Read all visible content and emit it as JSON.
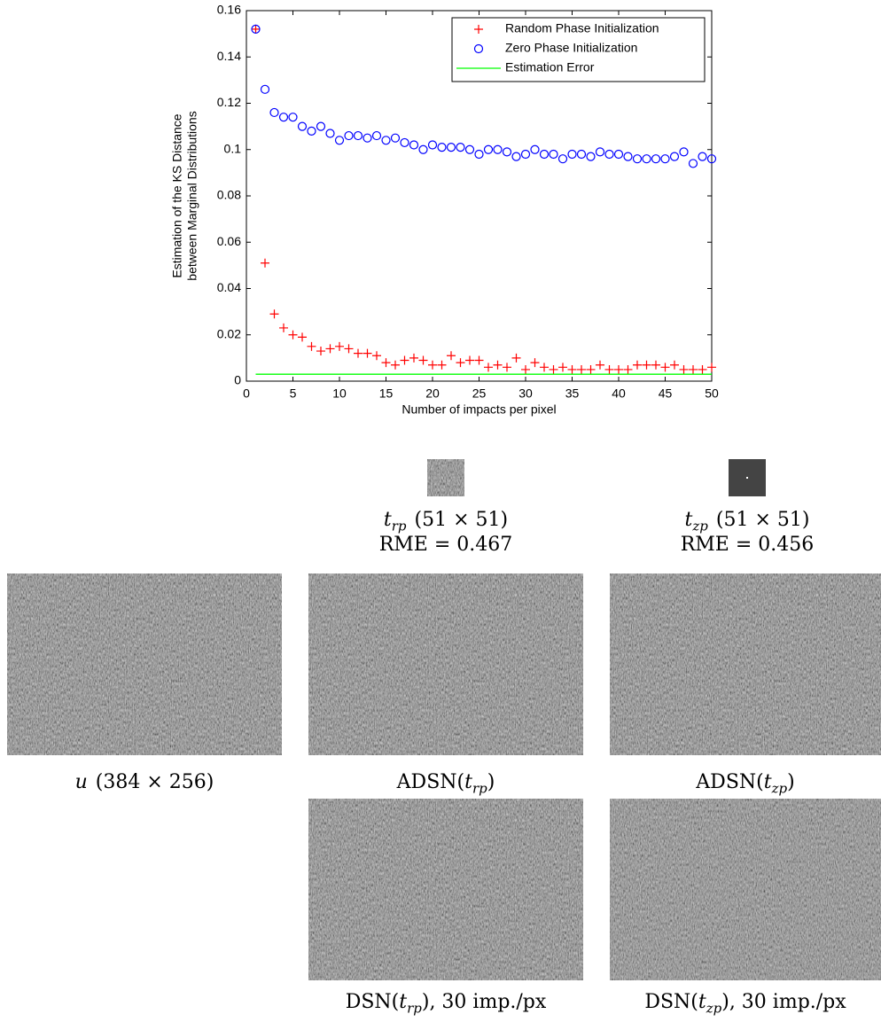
{
  "chart_data": {
    "type": "scatter",
    "ylabel": [
      "Estimation of the KS Distance",
      "between Marginal Distributions"
    ],
    "xlabel": "Number of impacts per pixel",
    "xlim": [
      0,
      50
    ],
    "xticks": [
      0,
      5,
      10,
      15,
      20,
      25,
      30,
      35,
      40,
      45,
      50
    ],
    "ylim": [
      0,
      0.16
    ],
    "yticks": [
      0,
      0.02,
      0.04,
      0.06,
      0.08,
      0.1,
      0.12,
      0.14,
      0.16
    ],
    "legend": "upper right",
    "x": [
      1,
      2,
      3,
      4,
      5,
      6,
      7,
      8,
      9,
      10,
      11,
      12,
      13,
      14,
      15,
      16,
      17,
      18,
      19,
      20,
      21,
      22,
      23,
      24,
      25,
      26,
      27,
      28,
      29,
      30,
      31,
      32,
      33,
      34,
      35,
      36,
      37,
      38,
      39,
      40,
      41,
      42,
      43,
      44,
      45,
      46,
      47,
      48,
      49,
      50
    ],
    "series": [
      {
        "name": "Random Phase Initialization",
        "color": "#ff0000",
        "marker": "plus",
        "values": [
          0.152,
          0.051,
          0.029,
          0.023,
          0.02,
          0.019,
          0.015,
          0.013,
          0.014,
          0.015,
          0.014,
          0.012,
          0.012,
          0.011,
          0.008,
          0.007,
          0.009,
          0.01,
          0.009,
          0.007,
          0.007,
          0.011,
          0.008,
          0.009,
          0.009,
          0.006,
          0.007,
          0.006,
          0.01,
          0.005,
          0.008,
          0.006,
          0.005,
          0.006,
          0.005,
          0.005,
          0.005,
          0.007,
          0.005,
          0.005,
          0.005,
          0.007,
          0.007,
          0.007,
          0.006,
          0.007,
          0.005,
          0.005,
          0.005,
          0.006
        ]
      },
      {
        "name": "Zero Phase Initialization",
        "color": "#0000ff",
        "marker": "circle",
        "values": [
          0.152,
          0.126,
          0.116,
          0.114,
          0.114,
          0.11,
          0.108,
          0.11,
          0.107,
          0.104,
          0.106,
          0.106,
          0.105,
          0.106,
          0.104,
          0.105,
          0.103,
          0.102,
          0.1,
          0.102,
          0.101,
          0.101,
          0.101,
          0.1,
          0.098,
          0.1,
          0.1,
          0.099,
          0.097,
          0.098,
          0.1,
          0.098,
          0.098,
          0.096,
          0.098,
          0.098,
          0.097,
          0.099,
          0.098,
          0.098,
          0.097,
          0.096,
          0.096,
          0.096,
          0.096,
          0.097,
          0.099,
          0.094,
          0.097,
          0.096
        ]
      },
      {
        "name": "Estimation Error",
        "color": "#00ff00",
        "marker": "line",
        "x": [
          1,
          50
        ],
        "values": [
          0.003,
          0.003
        ]
      }
    ]
  },
  "thumbnails": [
    {
      "symbol": "t",
      "subscript": "rp",
      "size": "(51 × 51)",
      "metric": "RME = 0.467"
    },
    {
      "symbol": "t",
      "subscript": "zp",
      "size": "(51 × 51)",
      "metric": "RME = 0.456"
    }
  ],
  "images": [
    {
      "symbol": "u",
      "size": "(384 × 256)"
    },
    {
      "prefix": "ADSN(",
      "symbol": "t",
      "subscript": "rp",
      "suffix": ")"
    },
    {
      "prefix": "ADSN(",
      "symbol": "t",
      "subscript": "zp",
      "suffix": ")"
    },
    {
      "prefix": "DSN(",
      "symbol": "t",
      "subscript": "rp",
      "suffix": "), 30 imp./px"
    },
    {
      "prefix": "DSN(",
      "symbol": "t",
      "subscript": "zp",
      "suffix": "), 30 imp./px"
    }
  ]
}
